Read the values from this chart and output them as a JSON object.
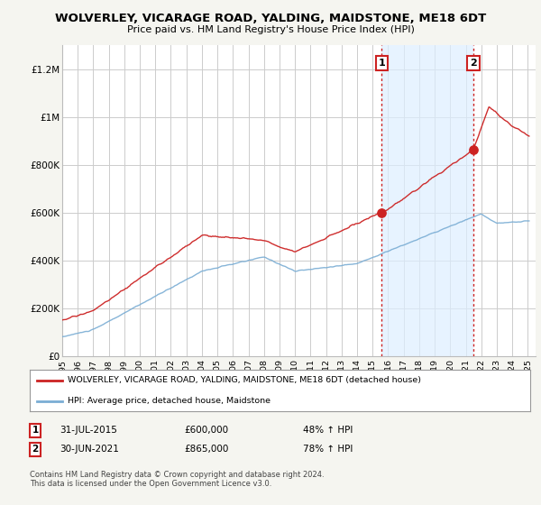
{
  "title": "WOLVERLEY, VICARAGE ROAD, YALDING, MAIDSTONE, ME18 6DT",
  "subtitle": "Price paid vs. HM Land Registry's House Price Index (HPI)",
  "legend_line1": "WOLVERLEY, VICARAGE ROAD, YALDING, MAIDSTONE, ME18 6DT (detached house)",
  "legend_line2": "HPI: Average price, detached house, Maidstone",
  "note1_date": "31-JUL-2015",
  "note1_price": "£600,000",
  "note1_hpi": "48% ↑ HPI",
  "note2_date": "30-JUN-2021",
  "note2_price": "£865,000",
  "note2_hpi": "78% ↑ HPI",
  "copyright": "Contains HM Land Registry data © Crown copyright and database right 2024.\nThis data is licensed under the Open Government Licence v3.0.",
  "sale1_year": 2015.58,
  "sale1_price": 600000,
  "sale2_year": 2021.5,
  "sale2_price": 865000,
  "hpi_color": "#7aadd4",
  "property_color": "#cc2222",
  "vline_color": "#cc2222",
  "shade_color": "#ddeeff",
  "background_color": "#f5f5f0",
  "plot_bg_color": "#ffffff",
  "ylim_max": 1300000,
  "xlim_start": 1995,
  "xlim_end": 2025.5
}
